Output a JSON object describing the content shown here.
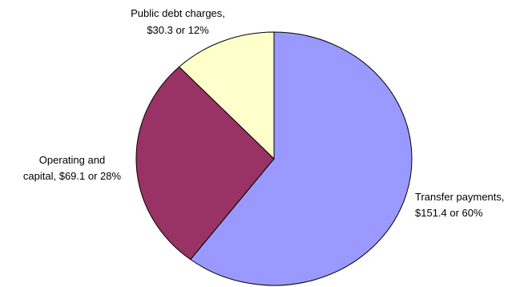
{
  "chart_data": {
    "type": "pie",
    "title": "",
    "slices": [
      {
        "category": "Transfer payments",
        "value": 151.4,
        "percent": 60,
        "color": "#9999ff",
        "label_lines": [
          "Transfer payments,",
          "$151.4 or 60%"
        ]
      },
      {
        "category": "Operating and capital",
        "value": 69.1,
        "percent": 28,
        "color": "#993366",
        "label_lines": [
          "Operating and",
          "capital, $69.1 or 28%"
        ]
      },
      {
        "category": "Public debt charges",
        "value": 30.3,
        "percent": 12,
        "color": "#ffffcc",
        "label_lines": [
          "Public debt charges,",
          "$30.3 or 12%"
        ]
      }
    ],
    "start": "12 o'clock",
    "direction": "clockwise",
    "legend": "none"
  }
}
